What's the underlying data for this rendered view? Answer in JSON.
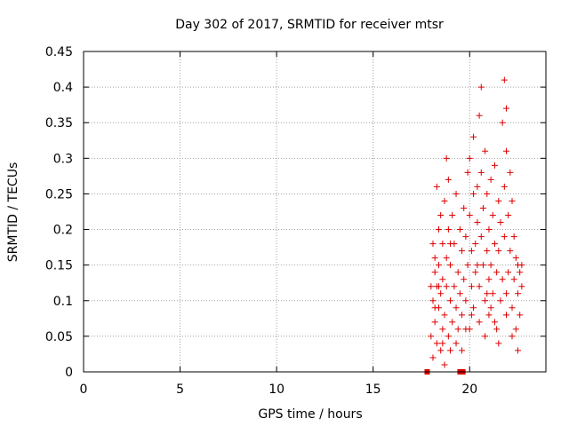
{
  "chart_data": {
    "type": "scatter",
    "title": "Day 302 of 2017, SRMTID for receiver mtsr",
    "xlabel": "GPS time / hours",
    "ylabel": "SRMTID / TECUs",
    "xlim": [
      0,
      23.95
    ],
    "ylim": [
      0,
      0.45
    ],
    "x_ticks": [
      0,
      5,
      10,
      15,
      20
    ],
    "x_tick_labels": [
      "0",
      "5",
      "10",
      "15",
      "20"
    ],
    "y_ticks": [
      0,
      0.05,
      0.1,
      0.15,
      0.2,
      0.25,
      0.3,
      0.35,
      0.4,
      0.45
    ],
    "y_tick_labels": [
      "0",
      "0.05",
      "0.1",
      "0.15",
      "0.2",
      "0.25",
      "0.3",
      "0.35",
      "0.4",
      "0.45"
    ],
    "grid": true,
    "marker": "plus",
    "color": "#dd0000",
    "zero_markers": {
      "marker": "square",
      "x": [
        17.8,
        19.5,
        19.65
      ]
    },
    "points": [
      [
        18.0,
        0.12
      ],
      [
        18.0,
        0.05
      ],
      [
        18.1,
        0.18
      ],
      [
        18.1,
        0.1
      ],
      [
        18.1,
        0.02
      ],
      [
        18.2,
        0.14
      ],
      [
        18.2,
        0.07
      ],
      [
        18.2,
        0.16
      ],
      [
        18.3,
        0.12
      ],
      [
        18.3,
        0.04
      ],
      [
        18.3,
        0.26
      ],
      [
        18.4,
        0.09
      ],
      [
        18.4,
        0.15
      ],
      [
        18.4,
        0.2
      ],
      [
        18.5,
        0.03
      ],
      [
        18.5,
        0.11
      ],
      [
        18.5,
        0.22
      ],
      [
        18.6,
        0.06
      ],
      [
        18.6,
        0.13
      ],
      [
        18.6,
        0.18
      ],
      [
        18.7,
        0.24
      ],
      [
        18.7,
        0.01
      ],
      [
        18.7,
        0.08
      ],
      [
        18.8,
        0.16
      ],
      [
        18.8,
        0.3
      ],
      [
        18.8,
        0.12
      ],
      [
        18.9,
        0.05
      ],
      [
        18.9,
        0.2
      ],
      [
        18.9,
        0.27
      ],
      [
        19.0,
        0.1
      ],
      [
        19.0,
        0.15
      ],
      [
        19.0,
        0.03
      ],
      [
        19.1,
        0.22
      ],
      [
        19.1,
        0.07
      ],
      [
        19.2,
        0.18
      ],
      [
        19.2,
        0.12
      ],
      [
        19.3,
        0.04
      ],
      [
        19.3,
        0.25
      ],
      [
        19.3,
        0.09
      ],
      [
        19.4,
        0.14
      ],
      [
        19.4,
        0.06
      ],
      [
        19.5,
        0.2
      ],
      [
        19.5,
        0.11
      ],
      [
        19.6,
        0.17
      ],
      [
        19.6,
        0.08
      ],
      [
        19.7,
        0.23
      ],
      [
        19.7,
        0.13
      ],
      [
        19.8,
        0.19
      ],
      [
        19.8,
        0.1
      ],
      [
        19.9,
        0.28
      ],
      [
        19.9,
        0.15
      ],
      [
        20.0,
        0.22
      ],
      [
        20.0,
        0.06
      ],
      [
        20.0,
        0.3
      ],
      [
        20.1,
        0.17
      ],
      [
        20.1,
        0.12
      ],
      [
        20.2,
        0.25
      ],
      [
        20.2,
        0.33
      ],
      [
        20.2,
        0.09
      ],
      [
        20.3,
        0.18
      ],
      [
        20.3,
        0.14
      ],
      [
        20.4,
        0.26
      ],
      [
        20.4,
        0.21
      ],
      [
        20.5,
        0.12
      ],
      [
        20.5,
        0.36
      ],
      [
        20.5,
        0.07
      ],
      [
        20.6,
        0.19
      ],
      [
        20.6,
        0.28
      ],
      [
        20.6,
        0.4
      ],
      [
        20.7,
        0.15
      ],
      [
        20.7,
        0.23
      ],
      [
        20.8,
        0.1
      ],
      [
        20.8,
        0.31
      ],
      [
        20.9,
        0.17
      ],
      [
        20.9,
        0.25
      ],
      [
        21.0,
        0.13
      ],
      [
        21.0,
        0.2
      ],
      [
        21.0,
        0.08
      ],
      [
        21.1,
        0.27
      ],
      [
        21.1,
        0.15
      ],
      [
        21.2,
        0.22
      ],
      [
        21.2,
        0.11
      ],
      [
        21.3,
        0.18
      ],
      [
        21.3,
        0.29
      ],
      [
        21.4,
        0.14
      ],
      [
        21.4,
        0.06
      ],
      [
        21.5,
        0.24
      ],
      [
        21.5,
        0.17
      ],
      [
        21.6,
        0.1
      ],
      [
        21.6,
        0.21
      ],
      [
        21.7,
        0.35
      ],
      [
        21.7,
        0.13
      ],
      [
        21.8,
        0.26
      ],
      [
        21.8,
        0.41
      ],
      [
        21.8,
        0.19
      ],
      [
        21.9,
        0.37
      ],
      [
        21.9,
        0.08
      ],
      [
        21.9,
        0.31
      ],
      [
        22.0,
        0.22
      ],
      [
        22.0,
        0.14
      ],
      [
        22.1,
        0.28
      ],
      [
        22.1,
        0.17
      ],
      [
        22.2,
        0.09
      ],
      [
        22.2,
        0.24
      ],
      [
        22.3,
        0.13
      ],
      [
        22.3,
        0.19
      ],
      [
        22.4,
        0.06
      ],
      [
        22.4,
        0.16
      ],
      [
        22.5,
        0.11
      ],
      [
        22.5,
        0.15
      ],
      [
        22.6,
        0.14
      ],
      [
        22.6,
        0.08
      ],
      [
        22.5,
        0.03
      ],
      [
        22.7,
        0.12
      ],
      [
        22.7,
        0.15
      ],
      [
        18.2,
        0.09
      ],
      [
        18.6,
        0.04
      ],
      [
        19.0,
        0.18
      ],
      [
        19.6,
        0.03
      ],
      [
        20.1,
        0.08
      ],
      [
        20.4,
        0.15
      ],
      [
        20.8,
        0.05
      ],
      [
        21.1,
        0.09
      ],
      [
        21.5,
        0.04
      ],
      [
        21.9,
        0.11
      ],
      [
        22.2,
        0.05
      ],
      [
        18.4,
        0.12
      ],
      [
        19.8,
        0.06
      ],
      [
        20.9,
        0.11
      ],
      [
        21.3,
        0.07
      ]
    ]
  }
}
